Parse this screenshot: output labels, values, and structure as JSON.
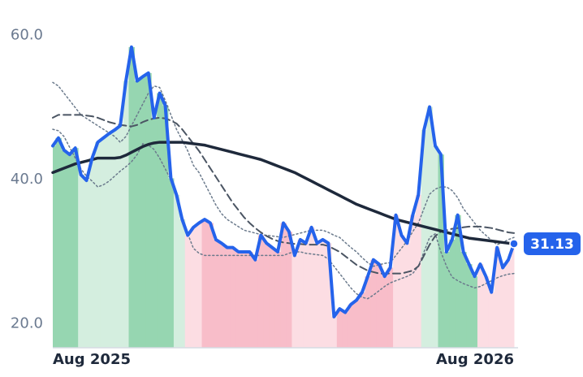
{
  "chart_data": {
    "type": "line",
    "categories": [
      "Aug 2025",
      null,
      null,
      null,
      null,
      null,
      null,
      null,
      null,
      null,
      null,
      null,
      null,
      null,
      null,
      null,
      null,
      null,
      null,
      null,
      null,
      null,
      null,
      null,
      null,
      null,
      null,
      null,
      null,
      null,
      null,
      null,
      null,
      null,
      null,
      null,
      null,
      null,
      null,
      null,
      null,
      null,
      null,
      null,
      null,
      null,
      null,
      null,
      null,
      null,
      null,
      null,
      null,
      null,
      null,
      null,
      null,
      null,
      null,
      null,
      null,
      null,
      null,
      null,
      null,
      null,
      null,
      null,
      null,
      null,
      null,
      null,
      null,
      null,
      null,
      null,
      null,
      null,
      null,
      null,
      null,
      null,
      "Aug 2026"
    ],
    "series": [
      {
        "color": "#2563eb",
        "width": 4,
        "style": "solid",
        "values": [
          44.7,
          45.8,
          44.1,
          43.5,
          44.4,
          40.7,
          39.9,
          43,
          45.2,
          45.8,
          46.4,
          46.9,
          47.5,
          53.7,
          58.4,
          53.7,
          54.3,
          54.8,
          48.6,
          52,
          50.3,
          40.2,
          37.9,
          34.5,
          32.3,
          33.4,
          34,
          34.5,
          34,
          31.7,
          31.2,
          30.6,
          30.6,
          30,
          30,
          30,
          28.9,
          32.3,
          31.2,
          30.6,
          30,
          34,
          32.8,
          29.5,
          31.7,
          31.2,
          33.4,
          31.2,
          31.7,
          31.2,
          21,
          22.1,
          21.6,
          22.7,
          23.3,
          24.4,
          26.6,
          28.9,
          28.3,
          26.6,
          27.8,
          35.1,
          32.3,
          31.2,
          35.1,
          37.9,
          46.9,
          50.1,
          44.7,
          43.5,
          30,
          31.7,
          35.1,
          30,
          28.3,
          26.6,
          28.3,
          26.6,
          24.4,
          30.6,
          27.8,
          28.9,
          31.13
        ]
      },
      {
        "color": "#1e293b",
        "width": 3.5,
        "style": "solid",
        "values": [
          41,
          41.3,
          41.6,
          41.9,
          42.2,
          42.4,
          42.6,
          42.8,
          43,
          43,
          43,
          43,
          43.1,
          43.4,
          43.8,
          44.2,
          44.6,
          44.9,
          45.1,
          45.2,
          45.2,
          45.2,
          45.2,
          45.2,
          45.1,
          45,
          44.9,
          44.8,
          44.6,
          44.4,
          44.2,
          44,
          43.8,
          43.6,
          43.4,
          43.2,
          43,
          42.8,
          42.5,
          42.2,
          41.9,
          41.6,
          41.3,
          41,
          40.6,
          40.2,
          39.8,
          39.4,
          39,
          38.6,
          38.2,
          37.8,
          37.4,
          37,
          36.6,
          36.3,
          36,
          35.7,
          35.4,
          35.1,
          34.8,
          34.5,
          34.3,
          34.1,
          33.9,
          33.7,
          33.5,
          33.3,
          33.1,
          32.9,
          32.7,
          32.5,
          32.3,
          32.1,
          31.9,
          31.8,
          31.7,
          31.6,
          31.5,
          31.4,
          31.3,
          31.2,
          31.1
        ]
      },
      {
        "color": "#4b5563",
        "width": 2,
        "style": "dashed",
        "values": [
          48.6,
          49,
          49,
          49,
          49,
          49,
          48.9,
          48.8,
          48.6,
          48.3,
          48,
          47.8,
          47.6,
          47.5,
          47.4,
          47.6,
          48,
          48.3,
          48.5,
          48.6,
          48.5,
          48.2,
          47.8,
          47,
          46,
          45,
          44,
          42.8,
          41.6,
          40.4,
          39.2,
          38,
          36.8,
          35.8,
          34.8,
          34,
          33.3,
          32.7,
          32.2,
          31.8,
          31.5,
          31.3,
          31.2,
          31.1,
          31.1,
          31,
          31,
          31,
          31,
          30.8,
          30.4,
          30,
          29.4,
          28.8,
          28.2,
          27.8,
          27.4,
          27.2,
          27,
          27,
          27,
          27,
          27,
          27.2,
          27.4,
          28,
          29.5,
          31,
          32.2,
          32.8,
          33,
          33.2,
          33.3,
          33.4,
          33.5,
          33.5,
          33.5,
          33.4,
          33.3,
          33.1,
          32.9,
          32.7,
          32.6
        ]
      },
      {
        "color": "#6b7a8c",
        "width": 1.5,
        "style": "dotted",
        "values": [
          53.5,
          53,
          52,
          51,
          50,
          49,
          48.5,
          48,
          47.5,
          47,
          46.5,
          46,
          45.2,
          46,
          47.5,
          49,
          50.5,
          52,
          53,
          52.8,
          51,
          49,
          47,
          45.5,
          44,
          42,
          41,
          39.5,
          38,
          36.5,
          35.3,
          34.5,
          34,
          33.5,
          33,
          32.8,
          32.6,
          32.4,
          32.3,
          32.2,
          32.1,
          32,
          32.2,
          32.4,
          32.6,
          32.8,
          33,
          33,
          33,
          32.7,
          32.3,
          32,
          31.3,
          30.6,
          30,
          29.2,
          28.5,
          28,
          28.2,
          28.4,
          28.5,
          29.5,
          30.5,
          31.5,
          32.8,
          34,
          36,
          38,
          38.7,
          39,
          39,
          38.5,
          37.5,
          36,
          35,
          34,
          33,
          32.3,
          31.6,
          31,
          31.3,
          31.7,
          32
        ]
      },
      {
        "color": "#6b7a8c",
        "width": 1.5,
        "style": "dotted",
        "values": [
          47,
          46.8,
          46,
          44.5,
          43,
          41.5,
          40.5,
          39.8,
          39,
          39.3,
          39.8,
          40.5,
          41.2,
          41.8,
          42.5,
          43.5,
          45,
          44.8,
          44.2,
          43,
          41.5,
          40,
          37.5,
          35,
          32.5,
          30.5,
          29.8,
          29.5,
          29.5,
          29.5,
          29.5,
          29.5,
          29.5,
          29.5,
          29.5,
          29.5,
          29.5,
          29.5,
          29.5,
          29.5,
          29.5,
          29.5,
          29.8,
          30,
          30,
          29.8,
          29.7,
          29.6,
          29.5,
          29,
          28,
          27,
          26,
          25,
          24.2,
          23.7,
          23.5,
          24,
          24.6,
          25.2,
          25.7,
          26,
          26.3,
          26.6,
          27,
          28,
          30,
          32,
          32.5,
          30,
          28,
          26.5,
          26,
          25.6,
          25.3,
          25,
          25.2,
          25.6,
          26,
          26.4,
          26.7,
          26.9,
          27
        ]
      }
    ],
    "bar_colors": [
      "#96d6b1",
      "#96d6b1",
      "#96d6b1",
      "#96d6b1",
      "#96d6b1",
      "#d4eedf",
      "#d4eedf",
      "#d4eedf",
      "#d4eedf",
      "#d4eedf",
      "#d4eedf",
      "#d4eedf",
      "#d4eedf",
      "#d4eedf",
      "#96d6b1",
      "#96d6b1",
      "#96d6b1",
      "#96d6b1",
      "#96d6b1",
      "#96d6b1",
      "#96d6b1",
      "#96d6b1",
      "#d4eedf",
      "#d4eedf",
      "#fcdde3",
      "#fcdde3",
      "#fcdde3",
      "#f8bdc9",
      "#f8bdc9",
      "#f8bdc9",
      "#f8bdc9",
      "#f8bdc9",
      "#f8bdc9",
      "#f8bdc9",
      "#f8bdc9",
      "#f8bdc9",
      "#f8bdc9",
      "#f8bdc9",
      "#f8bdc9",
      "#f8bdc9",
      "#f8bdc9",
      "#f8bdc9",
      "#f8bdc9",
      "#fcdde3",
      "#fcdde3",
      "#fcdde3",
      "#fcdde3",
      "#fcdde3",
      "#fcdde3",
      "#fcdde3",
      "#fcdde3",
      "#f8bdc9",
      "#f8bdc9",
      "#f8bdc9",
      "#f8bdc9",
      "#f8bdc9",
      "#f8bdc9",
      "#f8bdc9",
      "#f8bdc9",
      "#f8bdc9",
      "#f8bdc9",
      "#fcdde3",
      "#fcdde3",
      "#fcdde3",
      "#fcdde3",
      "#fcdde3",
      "#d4eedf",
      "#d4eedf",
      "#d4eedf",
      "#96d6b1",
      "#96d6b1",
      "#96d6b1",
      "#96d6b1",
      "#96d6b1",
      "#96d6b1",
      "#96d6b1",
      "#fcdde3",
      "#fcdde3",
      "#fcdde3",
      "#fcdde3",
      "#fcdde3",
      "#fcdde3",
      "#fcdde3"
    ],
    "ylim": [
      16.7,
      63.8
    ],
    "yticks": [
      {
        "value": 20,
        "label": "20.0"
      },
      {
        "value": 40,
        "label": "40.0"
      },
      {
        "value": 60,
        "label": "60.0"
      }
    ],
    "grid": false
  }
}
